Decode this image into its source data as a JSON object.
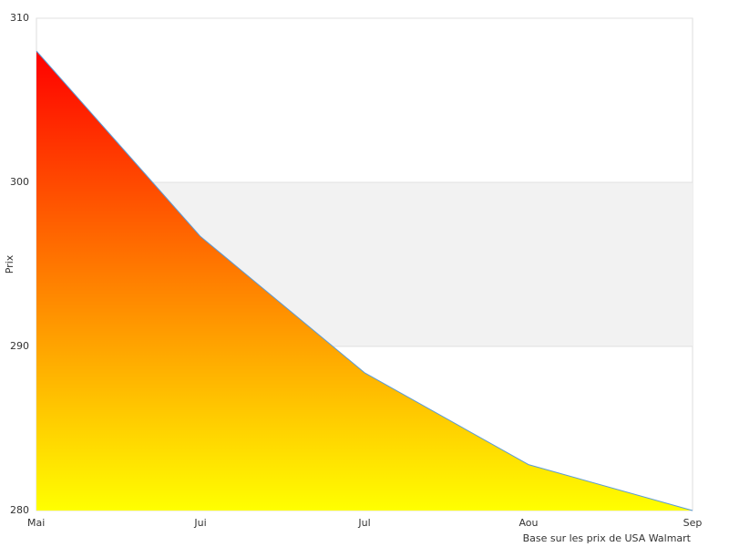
{
  "chart_data": {
    "type": "area",
    "y_label": "Prix",
    "footer": "Base sur les prix de USA Walmart",
    "categories": [
      "Mai",
      "Jui",
      "Jul",
      "Aou",
      "Sep"
    ],
    "values": [
      308,
      296.7,
      288.4,
      282.8,
      280
    ],
    "ylim": [
      280,
      310
    ],
    "yticks": [
      280,
      290,
      300,
      310
    ],
    "gradient": [
      "#ff0000",
      "#ffff00"
    ],
    "line_color": "#5b9bd5",
    "band_color": "#f2f2f2"
  }
}
